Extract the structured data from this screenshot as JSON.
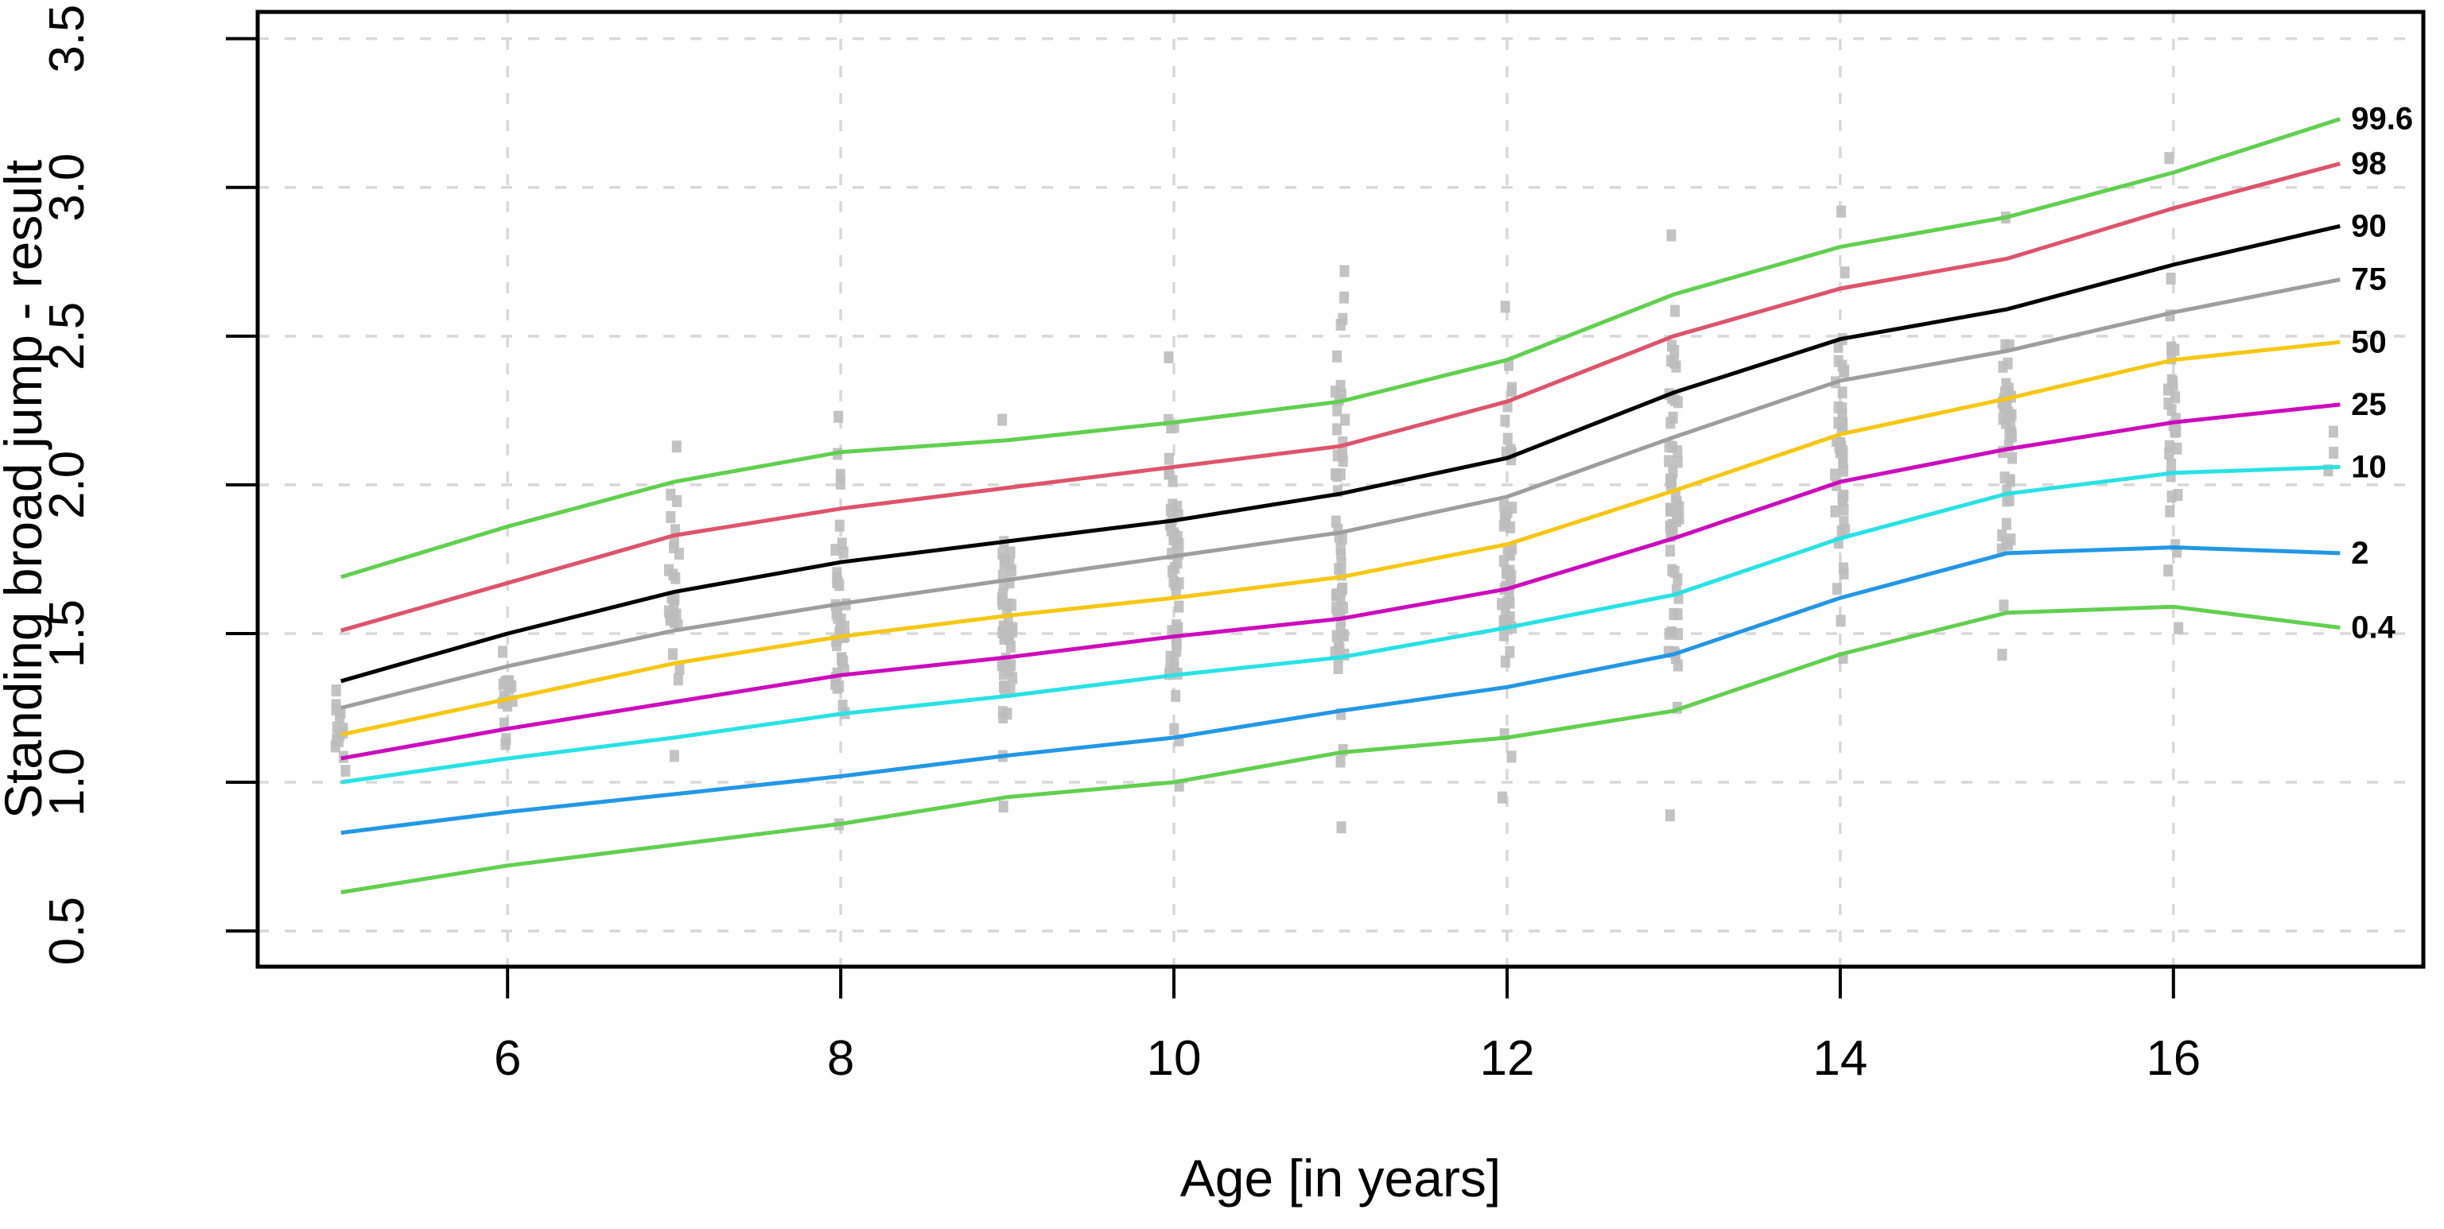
{
  "figure": {
    "background": "#ffffff",
    "box_color": "#000000",
    "grid_color": "#d8d8d8",
    "tick_color": "#000000",
    "percentile_label_color": "#2222f0"
  },
  "chart_data": {
    "type": "line",
    "title": "",
    "xlabel": "Age [in years]",
    "ylabel": "Standing broad jump - result",
    "grid": true,
    "legend_position": "right-edge-labels",
    "xlim": [
      4.5,
      17.5
    ],
    "ylim": [
      0.38,
      3.59
    ],
    "x_ticks": [
      6,
      8,
      10,
      12,
      14,
      16
    ],
    "x_tick_labels": [
      "6",
      "8",
      "10",
      "12",
      "14",
      "16"
    ],
    "y_ticks": [
      0.5,
      1.0,
      1.5,
      2.0,
      2.5,
      3.0,
      3.5
    ],
    "y_tick_labels": [
      "0.5",
      "1.0",
      "1.5",
      "2.0",
      "2.5",
      "3.0",
      "3.5"
    ],
    "x": [
      5,
      6,
      7,
      8,
      9,
      10,
      11,
      12,
      13,
      14,
      15,
      16,
      17
    ],
    "series": [
      {
        "name": "99.6",
        "color": "#61d04f",
        "values": [
          1.69,
          1.86,
          2.01,
          2.11,
          2.15,
          2.21,
          2.28,
          2.42,
          2.64,
          2.8,
          2.9,
          3.05,
          3.23
        ]
      },
      {
        "name": "98",
        "color": "#df536b",
        "values": [
          1.51,
          1.67,
          1.83,
          1.92,
          1.99,
          2.06,
          2.13,
          2.28,
          2.5,
          2.66,
          2.76,
          2.93,
          3.08
        ]
      },
      {
        "name": "90",
        "color": "#000000",
        "values": [
          1.34,
          1.5,
          1.64,
          1.74,
          1.81,
          1.88,
          1.97,
          2.09,
          2.31,
          2.49,
          2.59,
          2.74,
          2.87
        ]
      },
      {
        "name": "75",
        "color": "#9e9e9e",
        "values": [
          1.25,
          1.39,
          1.51,
          1.6,
          1.68,
          1.76,
          1.84,
          1.96,
          2.16,
          2.35,
          2.45,
          2.58,
          2.69
        ]
      },
      {
        "name": "50",
        "color": "#f5c710",
        "values": [
          1.16,
          1.28,
          1.4,
          1.49,
          1.56,
          1.62,
          1.69,
          1.8,
          1.98,
          2.17,
          2.29,
          2.42,
          2.48
        ]
      },
      {
        "name": "25",
        "color": "#cd0bbc",
        "values": [
          1.08,
          1.18,
          1.27,
          1.36,
          1.42,
          1.49,
          1.55,
          1.65,
          1.82,
          2.01,
          2.12,
          2.21,
          2.27
        ]
      },
      {
        "name": "10",
        "color": "#28e2e5",
        "values": [
          1.0,
          1.08,
          1.15,
          1.23,
          1.29,
          1.36,
          1.42,
          1.52,
          1.63,
          1.82,
          1.97,
          2.04,
          2.06
        ]
      },
      {
        "name": "2",
        "color": "#2297e6",
        "values": [
          0.83,
          0.9,
          0.96,
          1.02,
          1.09,
          1.15,
          1.24,
          1.32,
          1.43,
          1.62,
          1.77,
          1.79,
          1.77
        ]
      },
      {
        "name": "0.4",
        "color": "#61d04f",
        "values": [
          0.63,
          0.72,
          0.79,
          0.86,
          0.95,
          1.0,
          1.1,
          1.15,
          1.24,
          1.43,
          1.57,
          1.59,
          1.52
        ]
      }
    ],
    "scatter": {
      "marker": "square",
      "color": "#bdbdbd",
      "strips": [
        {
          "age": 5,
          "min": 1.04,
          "max": 1.31,
          "n": 14
        },
        {
          "age": 6,
          "min": 1.13,
          "max": 1.44,
          "n": 16
        },
        {
          "age": 7,
          "min": 1.09,
          "max": 2.13,
          "n": 26
        },
        {
          "age": 8,
          "min": 0.86,
          "max": 2.23,
          "n": 40
        },
        {
          "age": 9,
          "min": 0.92,
          "max": 2.22,
          "n": 46
        },
        {
          "age": 10,
          "min": 0.99,
          "max": 2.43,
          "n": 50
        },
        {
          "age": 11,
          "min": 0.85,
          "max": 2.72,
          "n": 55
        },
        {
          "age": 12,
          "min": 0.95,
          "max": 2.6,
          "n": 50
        },
        {
          "age": 13,
          "min": 0.89,
          "max": 2.84,
          "n": 55
        },
        {
          "age": 14,
          "min": 1.42,
          "max": 2.92,
          "n": 45
        },
        {
          "age": 15,
          "min": 1.43,
          "max": 2.9,
          "n": 40
        },
        {
          "age": 16,
          "min": 1.52,
          "max": 3.1,
          "n": 32
        },
        {
          "age": 16.95,
          "min": 2.05,
          "max": 2.18,
          "n": 3
        }
      ]
    }
  }
}
